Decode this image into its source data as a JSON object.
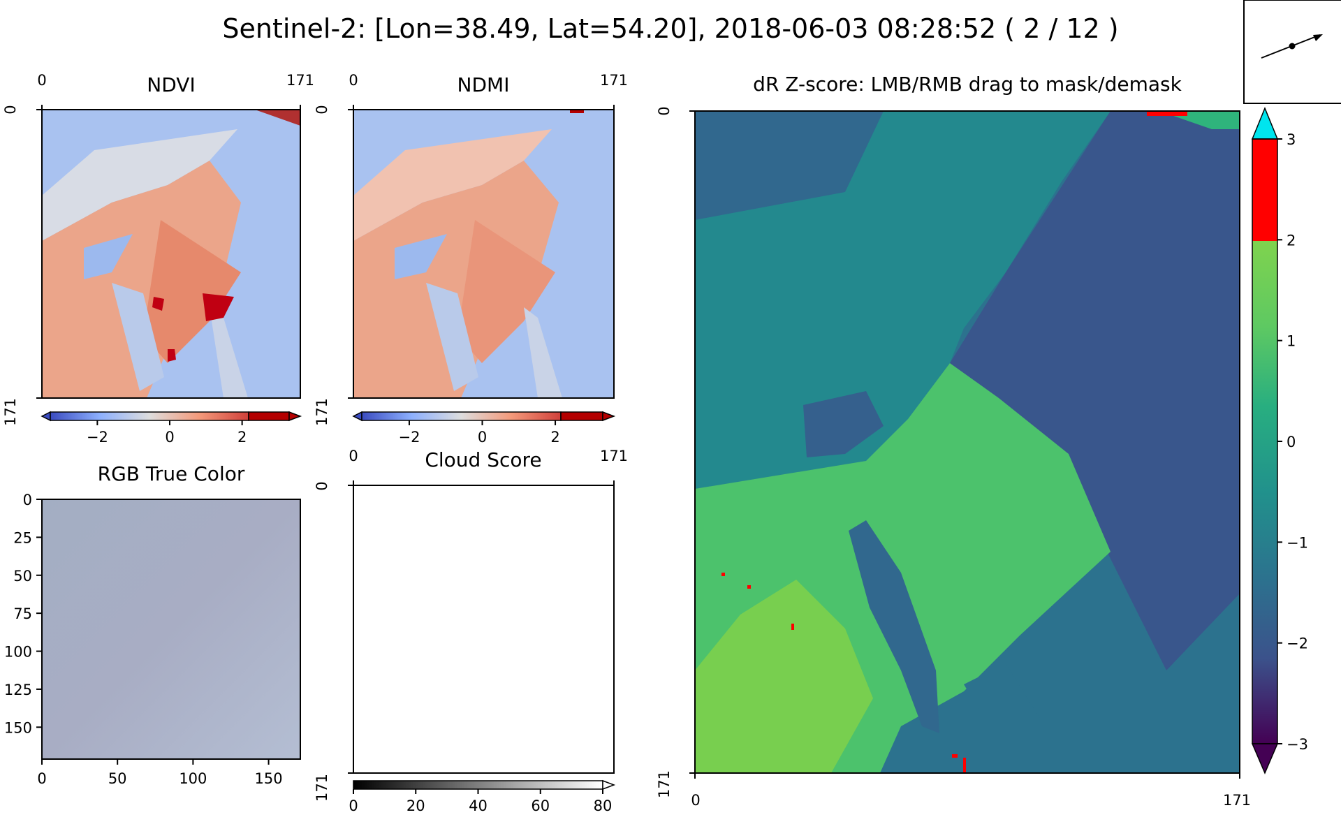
{
  "figure": {
    "title": "Sentinel-2: [Lon=38.49, Lat=54.20], 2018-06-03 08:28:52 ( 2 / 12 )"
  },
  "chart_data": [
    {
      "type": "heatmap",
      "id": "ndvi",
      "title": "NDVI",
      "x_ticks": [
        "0",
        "171"
      ],
      "y_ticks": [
        "0",
        "171"
      ],
      "colormap": "coolwarm",
      "colorbar": {
        "ticks": [
          "−2",
          "0",
          "2"
        ],
        "range": [
          -3.3,
          3.3
        ],
        "over_color": "#b40000",
        "above": 2
      }
    },
    {
      "type": "heatmap",
      "id": "ndmi",
      "title": "NDMI",
      "x_ticks": [
        "0",
        "171"
      ],
      "y_ticks": [
        "0",
        "171"
      ],
      "colormap": "coolwarm",
      "colorbar": {
        "ticks": [
          "−2",
          "0",
          "2"
        ],
        "range": [
          -3.3,
          3.3
        ],
        "over_color": "#b40000",
        "above": 2
      }
    },
    {
      "type": "heatmap",
      "id": "rgb",
      "title": "RGB True Color",
      "x_ticks": [
        "0",
        "50",
        "100",
        "150"
      ],
      "y_ticks": [
        "0",
        "25",
        "50",
        "75",
        "100",
        "125",
        "150"
      ],
      "x_range": [
        0,
        171
      ],
      "y_range": [
        0,
        171
      ]
    },
    {
      "type": "heatmap",
      "id": "cloud",
      "title": "Cloud Score",
      "x_ticks": [
        "0",
        "171"
      ],
      "y_ticks": [
        "0",
        "171"
      ],
      "colorbar": {
        "ticks": [
          "0",
          "20",
          "40",
          "60",
          "80"
        ],
        "range": [
          0,
          80
        ],
        "colormap": "gray"
      }
    },
    {
      "type": "heatmap",
      "id": "zscore",
      "title": "dR Z-score: LMB/RMB drag to mask/demask",
      "x_ticks": [
        "0",
        "171"
      ],
      "y_ticks": [
        "0",
        "171"
      ],
      "colormap": "viridis",
      "colorbar": {
        "ticks": [
          "−3",
          "−2",
          "−1",
          "0",
          "1",
          "2",
          "3"
        ],
        "range": [
          -3,
          3
        ],
        "over_color": "#00e5ee",
        "band_2_3_color": "#ff0000",
        "band_0_2_color": "#7fd34e"
      }
    }
  ]
}
